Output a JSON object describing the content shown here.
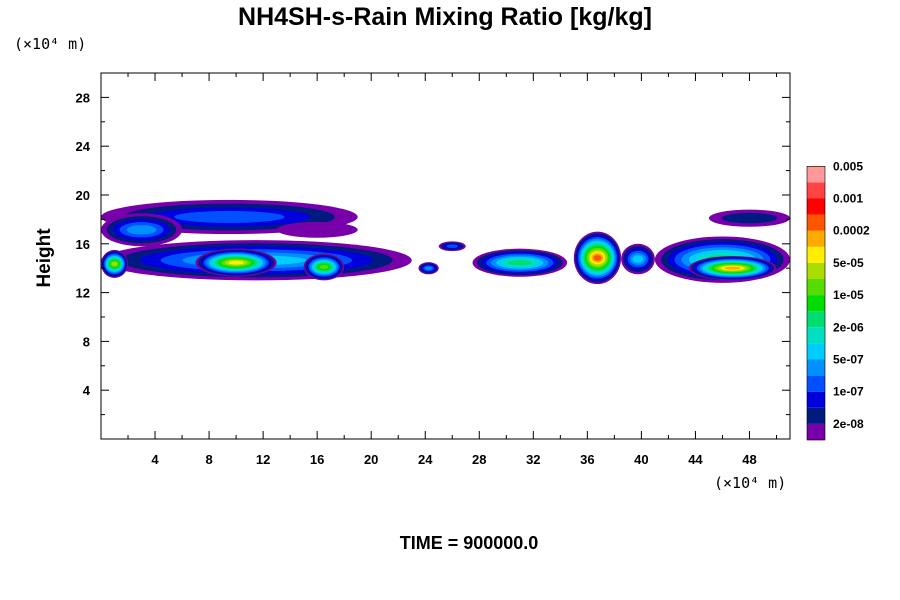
{
  "chart_data": {
    "type": "contour",
    "title": "NH4SH-s-Rain Mixing Ratio [kg/kg]",
    "ylabel": "Height",
    "x_unit": "(×10⁴ m)",
    "y_unit": "(×10⁴ m)",
    "time_label": "TIME = 900000.0",
    "xlim": [
      0,
      51
    ],
    "ylim": [
      0,
      30
    ],
    "x_ticks": [
      "4",
      "8",
      "12",
      "16",
      "20",
      "24",
      "28",
      "32",
      "36",
      "40",
      "44",
      "48"
    ],
    "y_ticks": [
      "4",
      "8",
      "12",
      "16",
      "20",
      "24",
      "28"
    ],
    "x_tick_values": [
      4,
      8,
      12,
      16,
      20,
      24,
      28,
      32,
      36,
      40,
      44,
      48
    ],
    "y_tick_values": [
      4,
      8,
      12,
      16,
      20,
      24,
      28
    ],
    "colorbar": {
      "colors": [
        "#7700aa",
        "#001a80",
        "#0000dd",
        "#0050ff",
        "#0090ff",
        "#00ccff",
        "#00e0c0",
        "#00dd70",
        "#00dd00",
        "#55dd00",
        "#aadd00",
        "#ffee00",
        "#ffaa00",
        "#ff5500",
        "#ff0000",
        "#ff4444",
        "#ff9999"
      ],
      "labels": [
        "2e-08",
        "1e-07",
        "5e-07",
        "2e-06",
        "1e-05",
        "5e-05",
        "0.0002",
        "0.001",
        "0.005"
      ]
    },
    "regions": [
      {
        "x": [
          0,
          19
        ],
        "y": [
          16.8,
          19.6
        ],
        "peak_level": 3
      },
      {
        "x": [
          0,
          6
        ],
        "y": [
          15.8,
          18.5
        ],
        "peak_level": 4
      },
      {
        "x": [
          13,
          19
        ],
        "y": [
          16.5,
          17.8
        ],
        "peak_level": 0
      },
      {
        "x": [
          0,
          23
        ],
        "y": [
          13.0,
          16.3
        ],
        "peak_level": 5
      },
      {
        "x": [
          0,
          2
        ],
        "y": [
          13.2,
          15.5
        ],
        "peak_level": 10
      },
      {
        "x": [
          7,
          13
        ],
        "y": [
          13.3,
          15.6
        ],
        "peak_level": 11
      },
      {
        "x": [
          15,
          18
        ],
        "y": [
          13.0,
          15.2
        ],
        "peak_level": 9
      },
      {
        "x": [
          23.5,
          25
        ],
        "y": [
          13.5,
          14.5
        ],
        "peak_level": 4
      },
      {
        "x": [
          25,
          27
        ],
        "y": [
          15.4,
          16.2
        ],
        "peak_level": 3
      },
      {
        "x": [
          27.5,
          34.5
        ],
        "y": [
          13.3,
          15.6
        ],
        "peak_level": 7
      },
      {
        "x": [
          35,
          38.5
        ],
        "y": [
          12.7,
          17.0
        ],
        "peak_level": 13
      },
      {
        "x": [
          38.5,
          41
        ],
        "y": [
          13.5,
          16.0
        ],
        "peak_level": 5
      },
      {
        "x": [
          41,
          51
        ],
        "y": [
          12.8,
          16.6
        ],
        "peak_level": 7
      },
      {
        "x": [
          43.5,
          50
        ],
        "y": [
          13.0,
          15.0
        ],
        "peak_level": 12
      },
      {
        "x": [
          45,
          51
        ],
        "y": [
          17.4,
          18.8
        ],
        "peak_level": 1
      }
    ]
  }
}
